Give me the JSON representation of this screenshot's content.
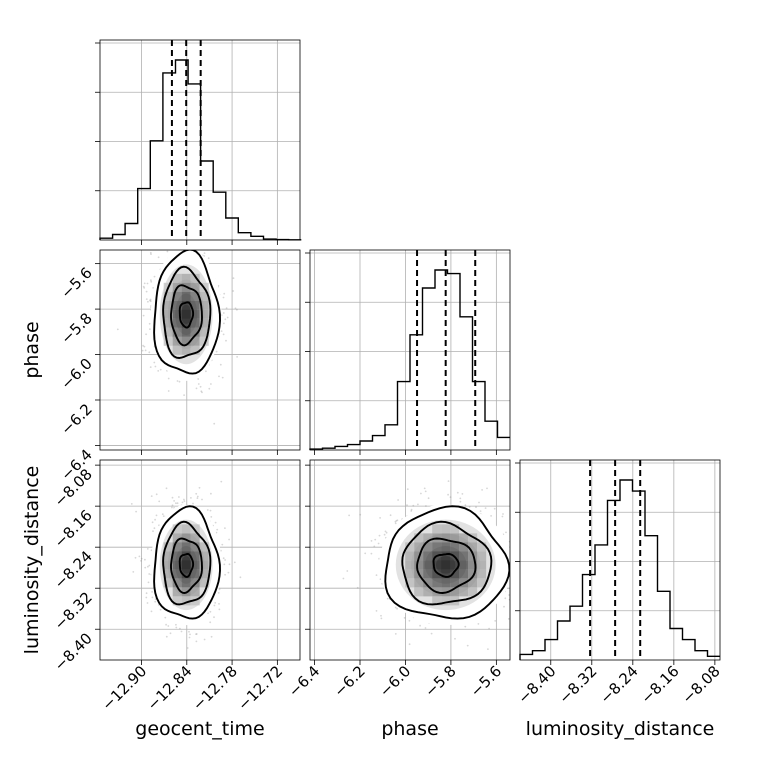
{
  "chart_data": {
    "type": "corner",
    "parameters": [
      "geocent_time",
      "phase",
      "luminosity_distance"
    ],
    "axis_labels": [
      "geocent_time",
      "phase",
      "luminosity_distance"
    ],
    "ranges": {
      "geocent_time": [
        -12.955,
        -12.69
      ],
      "phase": [
        -6.42,
        -5.54
      ],
      "luminosity_distance": [
        -8.46,
        -8.07
      ]
    },
    "ticks": {
      "geocent_time": [
        "−12.90",
        "−12.84",
        "−12.78",
        "−12.72"
      ],
      "phase": [
        "−6.4",
        "−6.2",
        "−6.0",
        "−5.8",
        "−5.6"
      ],
      "luminosity_distance": [
        "−8.40",
        "−8.32",
        "−8.24",
        "−8.16",
        "−8.08"
      ]
    },
    "tick_values": {
      "geocent_time": [
        -12.9,
        -12.84,
        -12.78,
        -12.72
      ],
      "phase": [
        -6.4,
        -6.2,
        -6.0,
        -5.8,
        -5.6
      ],
      "luminosity_distance": [
        -8.4,
        -8.32,
        -8.24,
        -8.16,
        -8.08
      ]
    },
    "marginals": [
      {
        "parameter": "geocent_time",
        "bin_edges": [
          -12.955,
          -12.9383,
          -12.9217,
          -12.905,
          -12.8883,
          -12.8717,
          -12.855,
          -12.8383,
          -12.8217,
          -12.805,
          -12.7883,
          -12.7717,
          -12.755,
          -12.7383,
          -12.7217,
          -12.705,
          -12.6883
        ],
        "counts": [
          1,
          3,
          9,
          28,
          54,
          91,
          98,
          85,
          43,
          26,
          12,
          4,
          2,
          0.5,
          0.2,
          0.1
        ],
        "quantiles": [
          -12.8597,
          -12.8408,
          -12.8216
        ]
      },
      {
        "parameter": "phase",
        "bin_edges": [
          -6.42,
          -6.365,
          -6.31,
          -6.255,
          -6.2,
          -6.145,
          -6.09,
          -6.035,
          -5.98,
          -5.925,
          -5.87,
          -5.815,
          -5.76,
          -5.705,
          -5.65,
          -5.595,
          -5.54
        ],
        "counts": [
          0.5,
          1,
          2,
          3,
          5,
          8,
          14,
          38,
          64,
          90,
          100,
          98,
          74,
          38,
          16,
          7
        ],
        "quantiles": [
          -5.949,
          -5.823,
          -5.693
        ]
      },
      {
        "parameter": "luminosity_distance",
        "bin_edges": [
          -8.46,
          -8.4356,
          -8.4113,
          -8.3869,
          -8.3625,
          -8.3381,
          -8.3138,
          -8.2894,
          -8.265,
          -8.2406,
          -8.2163,
          -8.1919,
          -8.1675,
          -8.1431,
          -8.1188,
          -8.0944,
          -8.07
        ],
        "counts": [
          3,
          5,
          11,
          21,
          29,
          46,
          62,
          86,
          97,
          91,
          67,
          37,
          17,
          11,
          5,
          2
        ],
        "quantiles": [
          -8.3233,
          -8.2745,
          -8.2256
        ]
      }
    ],
    "joint": [
      {
        "x": "geocent_time",
        "y": "phase",
        "center": [
          -12.8408,
          -5.823
        ],
        "sigma": [
          0.0195,
          0.122
        ]
      },
      {
        "x": "geocent_time",
        "y": "luminosity_distance",
        "center": [
          -12.8408,
          -8.2745
        ],
        "sigma": [
          0.0195,
          0.049
        ]
      },
      {
        "x": "phase",
        "y": "luminosity_distance",
        "center": [
          -5.823,
          -8.2745
        ],
        "sigma": [
          0.122,
          0.049
        ]
      }
    ],
    "grid": true
  }
}
